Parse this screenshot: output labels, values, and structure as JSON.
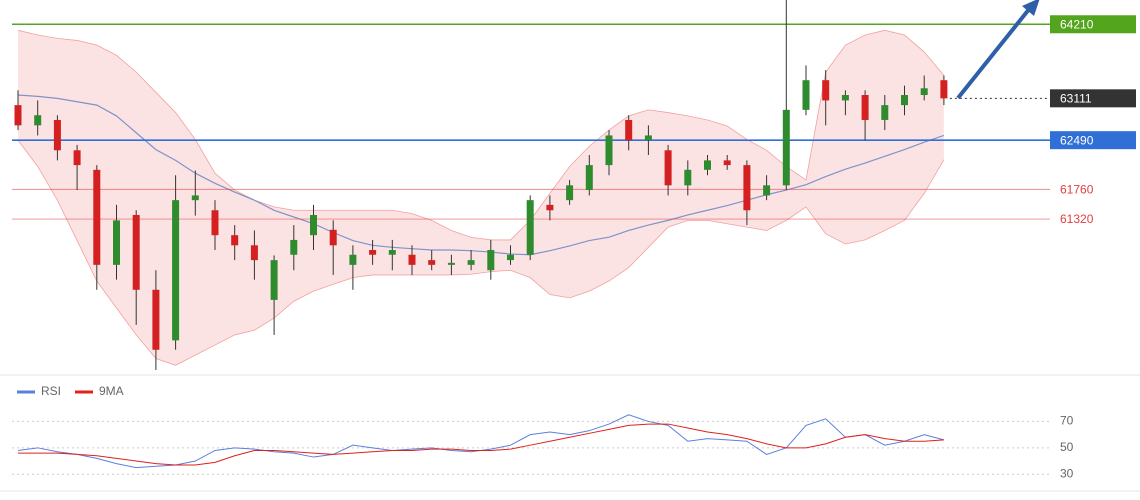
{
  "chart_data": [
    {
      "type": "candlestick",
      "open": [
        63010,
        62710,
        62790,
        62340,
        62050,
        60640,
        61380,
        60270,
        59520,
        61600,
        61450,
        61080,
        60930,
        60120,
        60790,
        61080,
        61160,
        60640,
        60860,
        60790,
        60790,
        60710,
        60640,
        60640,
        60560,
        60710,
        60790,
        61530,
        61600,
        61750,
        62120,
        62790,
        62490,
        62340,
        61820,
        62050,
        62190,
        62120,
        61670,
        61820,
        62940,
        63380,
        63080,
        63160,
        62790,
        63010,
        63160,
        63380
      ],
      "high": [
        63230,
        63080,
        62860,
        62420,
        62120,
        61530,
        61450,
        60560,
        61970,
        62040,
        61600,
        61230,
        61150,
        60780,
        61230,
        61530,
        61300,
        60930,
        61010,
        61010,
        60930,
        60860,
        60790,
        60860,
        61010,
        60930,
        61670,
        61670,
        61900,
        62270,
        62640,
        62860,
        62710,
        62420,
        62190,
        62270,
        62270,
        62190,
        61970,
        64570,
        63600,
        63530,
        63230,
        63230,
        63160,
        63300,
        63450,
        63450
      ],
      "low": [
        62640,
        62560,
        62190,
        61750,
        60270,
        60420,
        59750,
        59080,
        59380,
        61370,
        60860,
        60710,
        60420,
        59600,
        60560,
        60860,
        60490,
        60270,
        60640,
        60560,
        60490,
        60560,
        60490,
        60560,
        60420,
        60640,
        60710,
        61300,
        61530,
        61670,
        61970,
        62340,
        62270,
        61670,
        61670,
        61970,
        62050,
        61230,
        61600,
        61750,
        62860,
        62710,
        62860,
        62490,
        62640,
        62860,
        63080,
        63010
      ],
      "close": [
        62710,
        62860,
        62340,
        62120,
        60640,
        61300,
        60270,
        59380,
        61600,
        61670,
        61080,
        60930,
        60710,
        60710,
        61010,
        61380,
        60930,
        60790,
        60790,
        60860,
        60640,
        60640,
        60670,
        60710,
        60860,
        60790,
        61600,
        61450,
        61820,
        62120,
        62560,
        62490,
        62560,
        61820,
        62050,
        62190,
        62120,
        61450,
        61820,
        62940,
        63380,
        63080,
        63160,
        62790,
        63010,
        63160,
        63260,
        63110
      ],
      "upper_band": [
        64120,
        64050,
        64000,
        63970,
        63900,
        63750,
        63500,
        63200,
        62900,
        62500,
        62000,
        61750,
        61600,
        61500,
        61450,
        61450,
        61450,
        61450,
        61450,
        61450,
        61400,
        61300,
        61150,
        61050,
        61010,
        61010,
        61300,
        61700,
        62100,
        62400,
        62640,
        62850,
        62940,
        62900,
        62850,
        62790,
        62700,
        62500,
        62340,
        62100,
        61900,
        63500,
        63900,
        64050,
        64120,
        64050,
        63800,
        63450
      ],
      "lower_band": [
        62490,
        62100,
        61600,
        61000,
        60400,
        60000,
        59600,
        59250,
        59150,
        59300,
        59450,
        59600,
        59670,
        59850,
        60100,
        60250,
        60350,
        60450,
        60490,
        60490,
        60490,
        60490,
        60490,
        60500,
        60540,
        60560,
        60450,
        60200,
        60150,
        60250,
        60400,
        60600,
        60900,
        61200,
        61300,
        61300,
        61250,
        61200,
        61150,
        61300,
        61500,
        61100,
        60950,
        61010,
        61150,
        61300,
        61700,
        62200
      ],
      "moving_average": [
        63160,
        63140,
        63110,
        63060,
        63010,
        62850,
        62600,
        62350,
        62190,
        62000,
        61850,
        61720,
        61600,
        61450,
        61350,
        61250,
        61120,
        61000,
        60930,
        60900,
        60880,
        60860,
        60860,
        60850,
        60830,
        60800,
        60790,
        60850,
        60920,
        61000,
        61050,
        61150,
        61230,
        61300,
        61380,
        61450,
        61520,
        61600,
        61680,
        61750,
        61830,
        61950,
        62060,
        62150,
        62250,
        62350,
        62460,
        62560
      ],
      "up_color": "#2e8b2e",
      "down_color": "#d42020",
      "band_color": "#fbd9d9",
      "band_line_color": "#f2a0a0",
      "ma_color": "#7f93c8",
      "ylim": [
        59050,
        64570
      ],
      "levels": [
        {
          "value": 64210,
          "color": "#52a51c",
          "style": "box",
          "line": "solid"
        },
        {
          "value": 63111,
          "color": "#333333",
          "style": "box",
          "line": "dotted"
        },
        {
          "value": 62490,
          "color": "#2f6fd6",
          "style": "box",
          "line": "solid"
        },
        {
          "value": 61760,
          "color": "#e04040",
          "style": "text",
          "line": "solid"
        },
        {
          "value": 61320,
          "color": "#e04040",
          "style": "text",
          "line": "solid"
        }
      ]
    },
    {
      "type": "line",
      "series": [
        {
          "name": "RSI",
          "color": "#5b7fdc",
          "values": [
            48,
            50,
            47,
            45,
            42,
            38,
            35,
            36,
            37,
            40,
            48,
            50,
            49,
            47,
            46,
            43,
            45,
            52,
            50,
            48,
            49,
            50,
            48,
            47,
            49,
            52,
            60,
            62,
            60,
            63,
            68,
            75,
            70,
            67,
            55,
            57,
            56,
            55,
            45,
            50,
            67,
            72,
            58,
            60,
            52,
            55,
            60,
            56
          ]
        },
        {
          "name": "9MA",
          "color": "#e0201b",
          "values": [
            46,
            46,
            46,
            45,
            44,
            42,
            40,
            38,
            37,
            37,
            39,
            44,
            48,
            48,
            47,
            46,
            45,
            46,
            47,
            48,
            48,
            49,
            49,
            48,
            48,
            49,
            52,
            55,
            58,
            61,
            64,
            67,
            68,
            68,
            65,
            62,
            60,
            57,
            53,
            50,
            50,
            53,
            58,
            60,
            57,
            55,
            55,
            56
          ]
        }
      ],
      "ylim": [
        15,
        87
      ],
      "yticks": [
        70,
        50,
        30
      ],
      "grid": true
    }
  ]
}
